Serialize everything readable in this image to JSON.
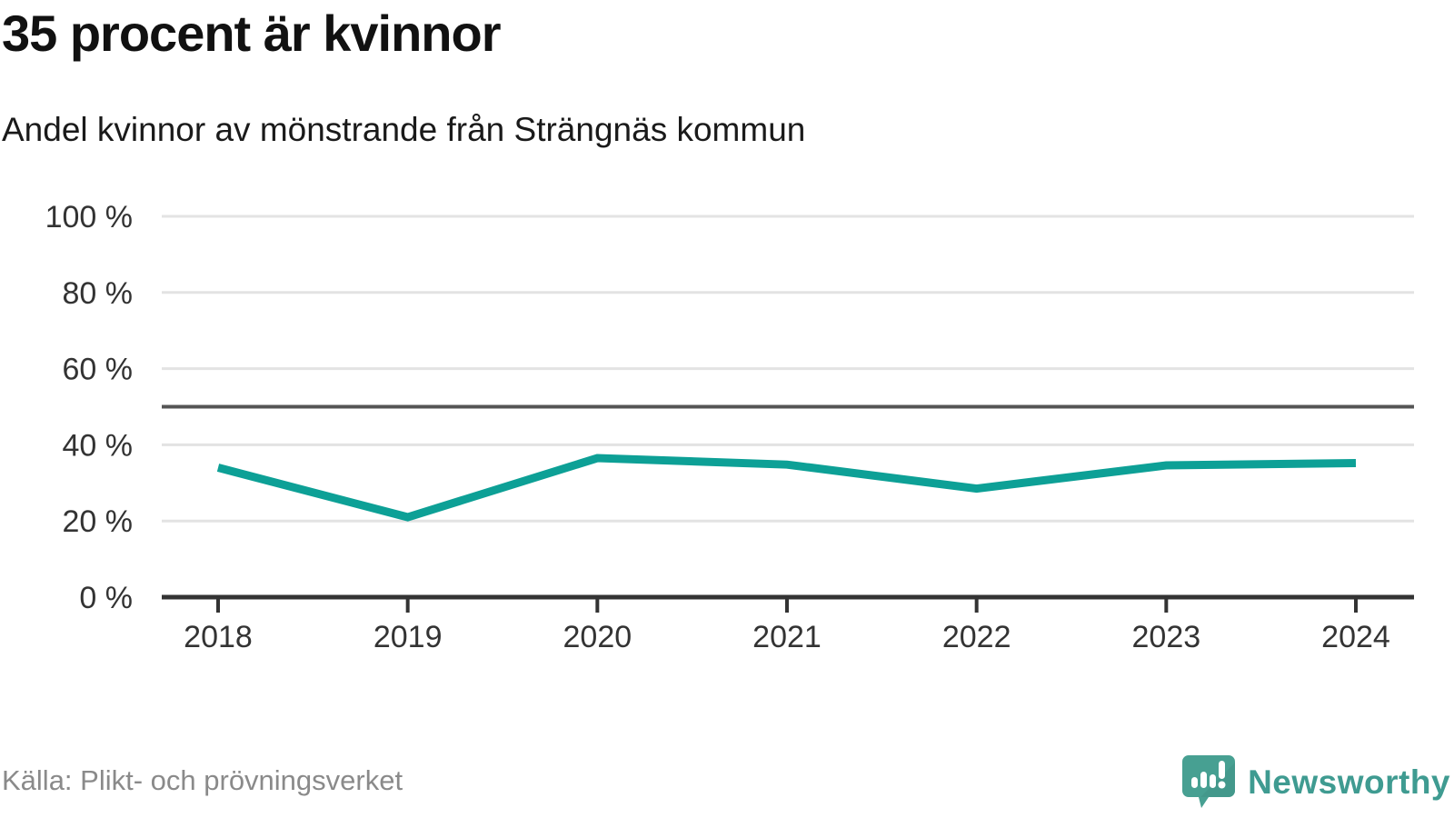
{
  "header": {
    "title": "35 procent är kvinnor",
    "subtitle": "Andel kvinnor av mönstrande från Strängnäs kommun"
  },
  "chart_data": {
    "type": "line",
    "title": "35 procent är kvinnor",
    "subtitle": "Andel kvinnor av mönstrande från Strängnäs kommun",
    "x": [
      "2018",
      "2019",
      "2020",
      "2021",
      "2022",
      "2023",
      "2024"
    ],
    "series": [
      {
        "name": "Andel kvinnor av mönstrande",
        "values": [
          34,
          21,
          36.5,
          34.8,
          28.5,
          34.6,
          35.2
        ]
      }
    ],
    "ylim": [
      0,
      100
    ],
    "yticks": [
      0,
      20,
      40,
      60,
      80,
      100
    ],
    "ytick_suffix": " %",
    "reference_line": {
      "value": 50
    },
    "grid": true,
    "legend": "none"
  },
  "footer": {
    "source": "Källa: Plikt- och prövningsverket"
  },
  "branding": {
    "name": "Newsworthy"
  },
  "colors": {
    "line": "#0da096",
    "reference_line": "#555555",
    "grid": "#e3e3e3",
    "axis": "#333333",
    "tick_label": "#333333",
    "title": "#111111",
    "subtitle": "#1a1a1a",
    "source": "#8a8a8a",
    "background": "#ffffff",
    "logo_bubble": "#47a092",
    "logo_bubble_shade": "#3d8d82",
    "logo_glyph": "#ffffff",
    "brand_text": "#3f9b91"
  }
}
